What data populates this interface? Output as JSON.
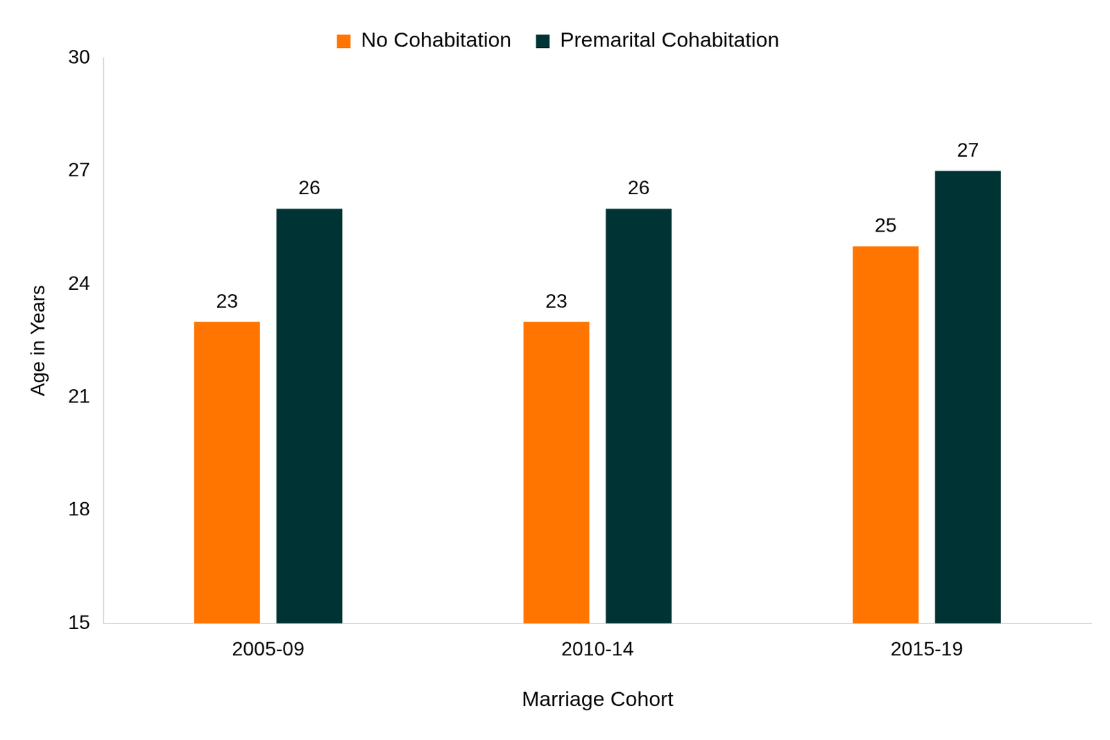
{
  "chart_data": {
    "type": "bar",
    "categories": [
      "2005-09",
      "2010-14",
      "2015-19"
    ],
    "series": [
      {
        "name": "No Cohabitation",
        "color": "#ff7500",
        "values": [
          23,
          23,
          25
        ]
      },
      {
        "name": "Premarital Cohabitation",
        "color": "#003333",
        "values": [
          26,
          26,
          27
        ]
      }
    ],
    "x_label": "Marriage Cohort",
    "y_label": "Age in Years",
    "ylim": [
      15,
      30
    ],
    "yticks": [
      15,
      18,
      21,
      24,
      27,
      30
    ],
    "grid": false,
    "legend": "top",
    "data_labels": true
  }
}
